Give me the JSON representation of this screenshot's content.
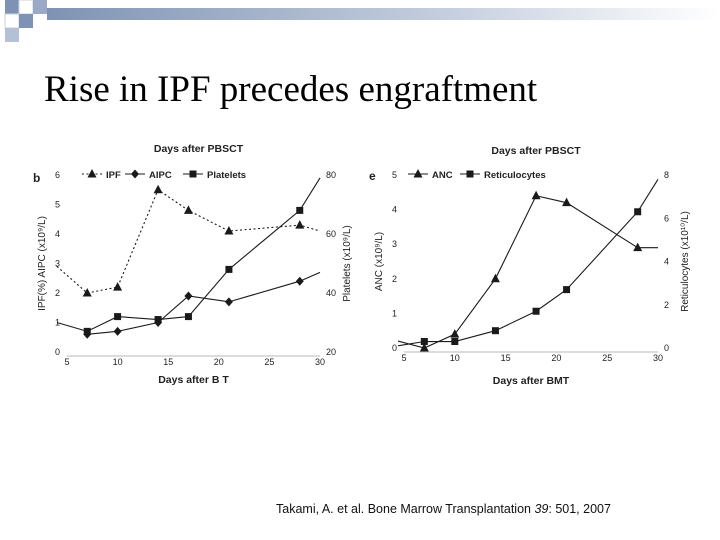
{
  "slide": {
    "title": "Rise in IPF precedes engraftment",
    "citation": {
      "prefix": "Takami, A. et al. Bone Marrow Transplantation ",
      "volume": "39",
      "suffix": ": 501, 2007"
    },
    "colors": {
      "decoration_square": "#7e93b4",
      "decoration_line": "#7e93b4",
      "series": "#1a1a1a"
    }
  },
  "chart_data": [
    {
      "type": "line",
      "panel_label": "b",
      "title": "Days after PBSCT",
      "xlabel": "Days after B  T",
      "ylabel_left": "IPF(%) AIPC (x10⁹/L)",
      "ylabel_right": "Platelets (x10⁹/L)",
      "xlim": [
        5,
        30
      ],
      "ylim_left": [
        0,
        6
      ],
      "ylim_right": [
        20,
        80
      ],
      "x_ticks": [
        "5",
        "10",
        "15",
        "20",
        "25",
        "30"
      ],
      "y_left_ticks": [
        "0",
        "1",
        "2",
        "3",
        "4",
        "5",
        "6"
      ],
      "y_right_ticks": [
        "20",
        "40",
        "60",
        "80"
      ],
      "legend_position": "top",
      "series": [
        {
          "name": "IPF",
          "axis": "left",
          "marker": "triangle",
          "line": "dotted",
          "x": [
            4,
            7,
            10,
            14,
            17,
            21,
            28,
            30
          ],
          "y": [
            2.9,
            2.0,
            2.2,
            5.5,
            4.8,
            4.1,
            4.3,
            4.1
          ]
        },
        {
          "name": "AIPC",
          "axis": "left",
          "marker": "diamond",
          "line": "solid",
          "x": [
            7,
            10,
            14,
            17,
            21,
            28,
            30
          ],
          "y": [
            0.6,
            0.7,
            1.0,
            1.9,
            1.7,
            2.4,
            2.7
          ]
        },
        {
          "name": "Platelets",
          "axis": "right",
          "marker": "square",
          "line": "solid",
          "x": [
            4,
            7,
            10,
            14,
            17,
            21,
            28,
            30
          ],
          "y": [
            30,
            27,
            32,
            31,
            32,
            48,
            68,
            79
          ]
        }
      ]
    },
    {
      "type": "line",
      "panel_label": "e",
      "title": "Days after PBSCT",
      "xlabel": "Days after BMT",
      "ylabel_left": "ANC (x10⁹/L)",
      "ylabel_right": "Reticulocytes (x10¹⁰/L)",
      "xlim": [
        5,
        30
      ],
      "ylim_left": [
        0,
        5
      ],
      "ylim_right": [
        0,
        8
      ],
      "x_ticks": [
        "5",
        "10",
        "15",
        "20",
        "25",
        "30"
      ],
      "y_left_ticks": [
        "0",
        "1",
        "2",
        "3",
        "4",
        "5"
      ],
      "y_right_ticks": [
        "0",
        "2",
        "4",
        "6",
        "8"
      ],
      "legend_position": "top",
      "series": [
        {
          "name": "ANC",
          "axis": "left",
          "marker": "triangle",
          "line": "solid",
          "x": [
            3,
            7,
            10,
            14,
            18,
            21,
            28,
            30
          ],
          "y": [
            0.2,
            0.0,
            0.4,
            2.0,
            4.4,
            4.2,
            2.9,
            2.9
          ]
        },
        {
          "name": "Reticulocytes",
          "axis": "right",
          "marker": "square",
          "line": "solid",
          "x": [
            3,
            7,
            10,
            14,
            18,
            21,
            28,
            30
          ],
          "y": [
            0.1,
            0.3,
            0.3,
            0.8,
            1.7,
            2.7,
            6.3,
            7.8
          ]
        }
      ]
    }
  ]
}
